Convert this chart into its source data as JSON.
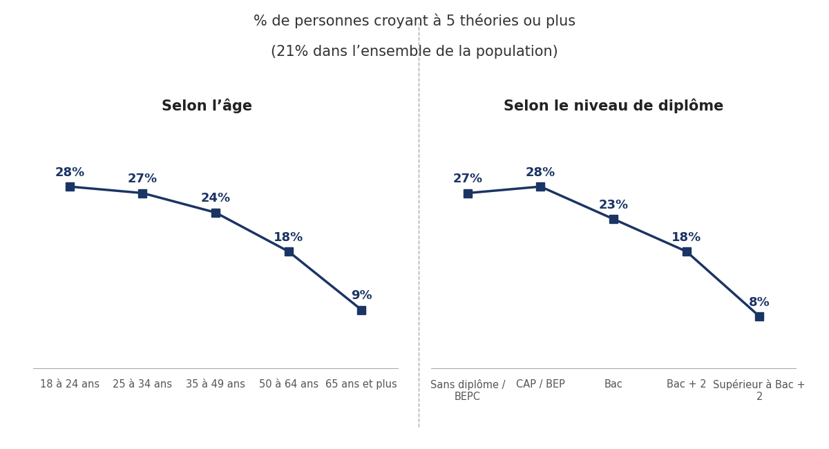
{
  "title_line1": "% de personnes croyant à 5 théories ou plus",
  "title_line2": "(21% dans l’ensemble de la population)",
  "subtitle_left": "Selon l’âge",
  "subtitle_right": "Selon le niveau de diplôme",
  "age_categories": [
    "18 à 24 ans",
    "25 à 34 ans",
    "35 à 49 ans",
    "50 à 64 ans",
    "65 ans et plus"
  ],
  "age_values": [
    28,
    27,
    24,
    18,
    9
  ],
  "diploma_categories": [
    "Sans diplôme /\nBEPC",
    "CAP / BEP",
    "Bac",
    "Bac + 2",
    "Supérieur à Bac +\n2"
  ],
  "diploma_values": [
    27,
    28,
    23,
    18,
    8
  ],
  "line_color": "#1a3464",
  "marker_style": "s",
  "marker_size": 8,
  "line_width": 2.5,
  "label_fontsize": 13,
  "subtitle_fontsize": 15,
  "title_fontsize": 15,
  "tick_fontsize": 10.5,
  "background_color": "#ffffff",
  "divider_color": "#aaaaaa",
  "ylim_min": 0,
  "ylim_max": 36
}
